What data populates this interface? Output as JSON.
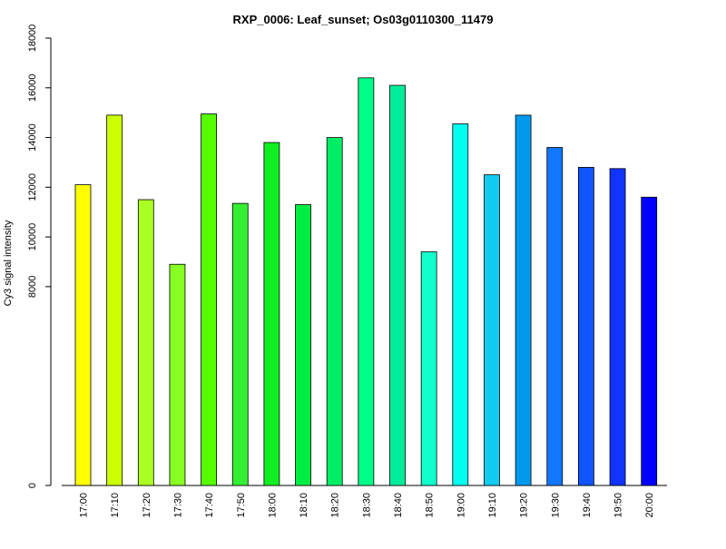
{
  "chart_data": {
    "type": "bar",
    "title": "RXP_0006: Leaf_sunset; Os03g0110300_11479",
    "xlabel": "",
    "ylabel": "Cy3 signal intensity",
    "ylim": [
      0,
      18000
    ],
    "yticks": [
      0,
      8000,
      10000,
      12000,
      14000,
      16000,
      18000
    ],
    "ytick_labels": [
      "0",
      "8000",
      "10000",
      "12000",
      "14000",
      "16000",
      "18000"
    ],
    "categories": [
      "17:00",
      "17:10",
      "17:20",
      "17:30",
      "17:40",
      "17:50",
      "18:00",
      "18:10",
      "18:20",
      "18:30",
      "18:40",
      "18:50",
      "19:00",
      "19:10",
      "19:20",
      "19:30",
      "19:40",
      "19:50",
      "20:00"
    ],
    "values": [
      12100,
      14900,
      11500,
      8900,
      14950,
      11350,
      13800,
      11300,
      14000,
      16400,
      16100,
      9400,
      14550,
      12500,
      14900,
      13600,
      12800,
      12750,
      11600
    ],
    "colors": [
      "#ffff00",
      "#ccff00",
      "#aaff22",
      "#88ff22",
      "#55ff00",
      "#33ee33",
      "#11ee22",
      "#00ee44",
      "#00ee66",
      "#00ff88",
      "#00ee99",
      "#11ffcc",
      "#00ffee",
      "#11ccee",
      "#0099ee",
      "#1177ff",
      "#1155ff",
      "#1133ff",
      "#0000ff"
    ],
    "grid": false,
    "legend": "none"
  }
}
